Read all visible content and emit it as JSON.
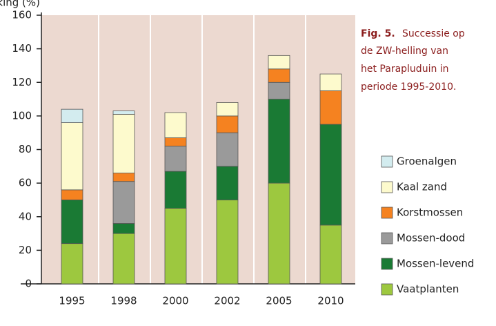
{
  "chart_data": {
    "type": "stacked-bar",
    "y_label": "Bedekking (%)",
    "caption": {
      "label": "Fig. 5.",
      "lines": [
        "Successie op",
        "de ZW-helling van",
        "het Parapluduin in",
        "periode 1995-2010."
      ]
    },
    "categories": [
      "1995",
      "1998",
      "2000",
      "2002",
      "2005",
      "2010"
    ],
    "series": [
      {
        "name": "Vaatplanten",
        "color": "#9dc83f",
        "values": [
          24,
          30,
          45,
          50,
          60,
          35
        ]
      },
      {
        "name": "Mossen-levend",
        "color": "#1a7a34",
        "values": [
          26,
          6,
          22,
          20,
          50,
          60
        ]
      },
      {
        "name": "Mossen-dood",
        "color": "#9a9a9a",
        "values": [
          0,
          25,
          15,
          20,
          10,
          0
        ]
      },
      {
        "name": "Korstmossen",
        "color": "#f58220",
        "values": [
          6,
          5,
          5,
          10,
          8,
          20
        ]
      },
      {
        "name": "Kaal zand",
        "color": "#fdfacd",
        "values": [
          40,
          35,
          15,
          8,
          8,
          10
        ]
      },
      {
        "name": "Groenalgen",
        "color": "#d3ecef",
        "values": [
          8,
          2,
          0,
          0,
          0,
          0
        ]
      }
    ],
    "ylim": [
      0,
      160
    ],
    "yticks": [
      0,
      20,
      40,
      60,
      80,
      100,
      120,
      140,
      160
    ]
  }
}
